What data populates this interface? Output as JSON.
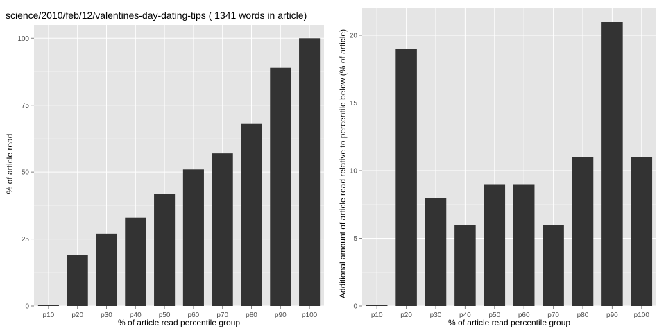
{
  "colors": {
    "panel_bg": "#e5e5e5",
    "grid_major": "#ffffff",
    "bar": "#333333",
    "tick_text": "#4d4d4d"
  },
  "chart_data": [
    {
      "type": "bar",
      "title": "science/2010/feb/12/valentines-day-dating-tips ( 1341 words in article)",
      "xlabel": "% of article read percentile group",
      "ylabel": "% of article read",
      "categories": [
        "p10",
        "p20",
        "p30",
        "p40",
        "p50",
        "p60",
        "p70",
        "p80",
        "p90",
        "p100"
      ],
      "values": [
        0,
        19,
        27,
        33,
        42,
        51,
        57,
        68,
        89,
        100
      ],
      "ylim": [
        0,
        105
      ],
      "yticks": [
        0,
        25,
        50,
        75,
        100
      ],
      "grid": true
    },
    {
      "type": "bar",
      "title": "",
      "xlabel": "% of article read percentile group",
      "ylabel": "Additional amount of article read relative to percentile below (% of article)",
      "categories": [
        "p10",
        "p20",
        "p30",
        "p40",
        "p50",
        "p60",
        "p70",
        "p80",
        "p90",
        "p100"
      ],
      "values": [
        0,
        19,
        8,
        6,
        9,
        9,
        6,
        11,
        21,
        11
      ],
      "ylim": [
        0,
        22
      ],
      "yticks": [
        0,
        5,
        10,
        15,
        20
      ],
      "grid": true
    }
  ]
}
